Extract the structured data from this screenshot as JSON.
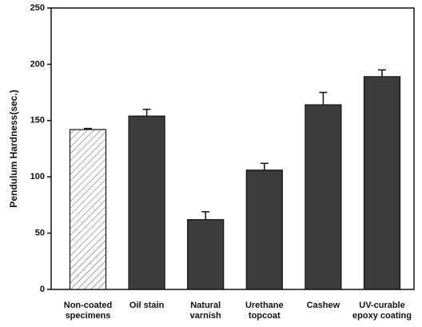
{
  "chart_data": {
    "type": "bar",
    "y_label": "Pendulum Hardness(sec.)",
    "categories": [
      [
        "Non-coated",
        "specimens"
      ],
      [
        "Oil stain"
      ],
      [
        "Natural",
        "varnish"
      ],
      [
        "Urethane",
        "topcoat"
      ],
      [
        "Cashew"
      ],
      [
        "UV-curable",
        "epoxy coating"
      ]
    ],
    "values": [
      142,
      154,
      62,
      106,
      164,
      189
    ],
    "errors": [
      1,
      6,
      7,
      6,
      11,
      6
    ],
    "colors": [
      "#ffffff",
      "#3c3c3c",
      "#3c3c3c",
      "#3c3c3c",
      "#3c3c3c",
      "#3c3c3c"
    ],
    "hatched": [
      true,
      false,
      false,
      false,
      false,
      false
    ],
    "ylim": [
      0,
      250
    ],
    "yticks": [
      0,
      50,
      100,
      150,
      200,
      250
    ]
  }
}
